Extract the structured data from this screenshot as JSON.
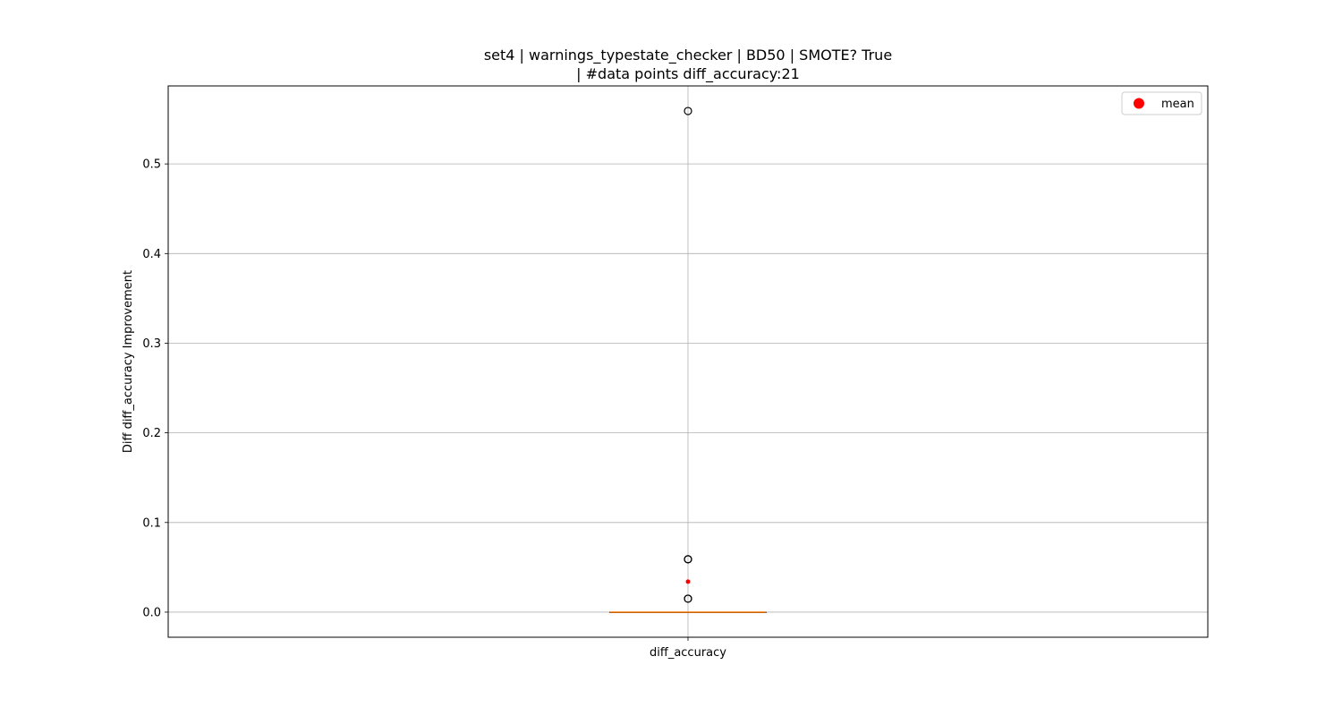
{
  "chart_data": {
    "type": "box",
    "title_line1": "set4 | warnings_typestate_checker | BD50 | SMOTE? True",
    "title_line2": "| #data points diff_accuracy:21",
    "xlabel": "",
    "ylabel": "Diff diff_accuracy Improvement",
    "categories": [
      "diff_accuracy"
    ],
    "ylim": [
      -0.028,
      0.587
    ],
    "yticks": [
      0.0,
      0.1,
      0.2,
      0.3,
      0.4,
      0.5
    ],
    "ytick_labels": [
      "0.0",
      "0.1",
      "0.2",
      "0.3",
      "0.4",
      "0.5"
    ],
    "grid": true,
    "legend": {
      "placement": "top-right",
      "entries": [
        {
          "label": "mean",
          "color": "#ff0000",
          "marker": "circle"
        }
      ]
    },
    "boxes": [
      {
        "name": "diff_accuracy",
        "q1": 0.0,
        "median": 0.0,
        "q3": 0.0,
        "whisker_low": 0.0,
        "whisker_high": 0.0,
        "mean": 0.034,
        "fliers": [
          0.015,
          0.015,
          0.059,
          0.059,
          0.559
        ]
      }
    ],
    "colors": {
      "median": "#ff7f0e",
      "mean": "#ff0000",
      "grid": "#b0b0b0",
      "flier_edge": "#000000"
    }
  }
}
